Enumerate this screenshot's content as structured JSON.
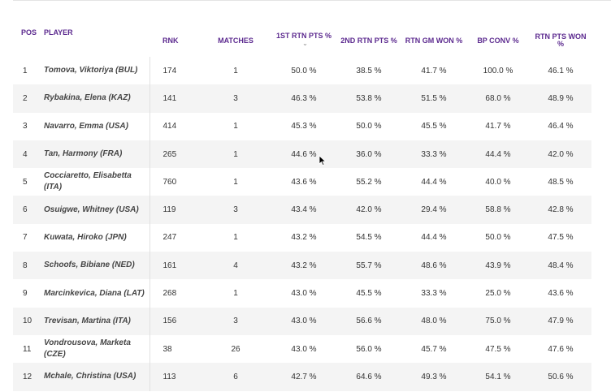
{
  "columns": {
    "pos": "POS",
    "player": "PLAYER",
    "rnk": "RNK",
    "matches": "MATCHES",
    "rtn1": "1ST RTN PTS %",
    "rtn2": "2ND RTN PTS %",
    "gm": "RTN GM WON %",
    "bp": "BP CONV %",
    "pts": "RTN PTS WON %"
  },
  "sort_icon": "chevron-down-icon",
  "colors": {
    "header_text": "#5c2a8f",
    "stripe": "#f4f4f4"
  },
  "rows": [
    {
      "pos": "1",
      "player": "Tomova, Viktoriya (BUL)",
      "rnk": "174",
      "matches": "1",
      "rtn1": "50.0 %",
      "rtn2": "38.5 %",
      "gm": "41.7 %",
      "bp": "100.0 %",
      "pts": "46.1 %"
    },
    {
      "pos": "2",
      "player": "Rybakina, Elena (KAZ)",
      "rnk": "141",
      "matches": "3",
      "rtn1": "46.3 %",
      "rtn2": "53.8 %",
      "gm": "51.5 %",
      "bp": "68.0 %",
      "pts": "48.9 %"
    },
    {
      "pos": "3",
      "player": "Navarro, Emma (USA)",
      "rnk": "414",
      "matches": "1",
      "rtn1": "45.3 %",
      "rtn2": "50.0 %",
      "gm": "45.5 %",
      "bp": "41.7 %",
      "pts": "46.4 %"
    },
    {
      "pos": "4",
      "player": "Tan, Harmony (FRA)",
      "rnk": "265",
      "matches": "1",
      "rtn1": "44.6 %",
      "rtn2": "36.0 %",
      "gm": "33.3 %",
      "bp": "44.4 %",
      "pts": "42.0 %"
    },
    {
      "pos": "5",
      "player": "Cocciaretto, Elisabetta (ITA)",
      "rnk": "760",
      "matches": "1",
      "rtn1": "43.6 %",
      "rtn2": "55.2 %",
      "gm": "44.4 %",
      "bp": "40.0 %",
      "pts": "48.5 %"
    },
    {
      "pos": "6",
      "player": "Osuigwe, Whitney (USA)",
      "rnk": "119",
      "matches": "3",
      "rtn1": "43.4 %",
      "rtn2": "42.0 %",
      "gm": "29.4 %",
      "bp": "58.8 %",
      "pts": "42.8 %"
    },
    {
      "pos": "7",
      "player": "Kuwata, Hiroko (JPN)",
      "rnk": "247",
      "matches": "1",
      "rtn1": "43.2 %",
      "rtn2": "54.5 %",
      "gm": "44.4 %",
      "bp": "50.0 %",
      "pts": "47.5 %"
    },
    {
      "pos": "8",
      "player": "Schoofs, Bibiane (NED)",
      "rnk": "161",
      "matches": "4",
      "rtn1": "43.2 %",
      "rtn2": "55.7 %",
      "gm": "48.6 %",
      "bp": "43.9 %",
      "pts": "48.4 %"
    },
    {
      "pos": "9",
      "player": "Marcinkevica, Diana (LAT)",
      "rnk": "268",
      "matches": "1",
      "rtn1": "43.0 %",
      "rtn2": "45.5 %",
      "gm": "33.3 %",
      "bp": "25.0 %",
      "pts": "43.6 %"
    },
    {
      "pos": "10",
      "player": "Trevisan, Martina (ITA)",
      "rnk": "156",
      "matches": "3",
      "rtn1": "43.0 %",
      "rtn2": "56.6 %",
      "gm": "48.0 %",
      "bp": "75.0 %",
      "pts": "47.9 %"
    },
    {
      "pos": "11",
      "player": "Vondrousova, Marketa (CZE)",
      "rnk": "38",
      "matches": "26",
      "rtn1": "43.0 %",
      "rtn2": "56.0 %",
      "gm": "45.7 %",
      "bp": "47.5 %",
      "pts": "47.6 %"
    },
    {
      "pos": "12",
      "player": "Mchale, Christina (USA)",
      "rnk": "113",
      "matches": "6",
      "rtn1": "42.7 %",
      "rtn2": "64.6 %",
      "gm": "49.3 %",
      "bp": "54.1 %",
      "pts": "50.6 %"
    }
  ]
}
